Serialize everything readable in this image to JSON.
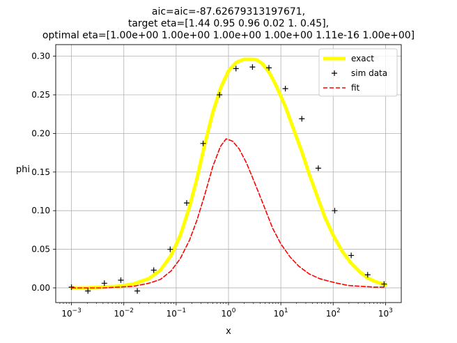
{
  "chart_data": {
    "type": "line",
    "title_lines": [
      "aic=aic=-87.62679313197671,",
      "target eta=[1.44 0.95 0.96 0.02 1.   0.45],",
      "optimal eta=[1.00e+00 1.00e+00 1.00e+00 1.00e+00 1.11e-16 1.00e+00]"
    ],
    "xlabel": "x",
    "ylabel": "phi",
    "x_scale": "log",
    "xlim": [
      0.0005,
      2000
    ],
    "ylim": [
      -0.019,
      0.315
    ],
    "grid": true,
    "legend_position": "top-right",
    "x_ticks": [
      {
        "value": 0.001,
        "base": "10",
        "exp": "−3"
      },
      {
        "value": 0.01,
        "base": "10",
        "exp": "−2"
      },
      {
        "value": 0.1,
        "base": "10",
        "exp": "−1"
      },
      {
        "value": 1,
        "base": "10",
        "exp": "0"
      },
      {
        "value": 10,
        "base": "10",
        "exp": "1"
      },
      {
        "value": 100,
        "base": "10",
        "exp": "2"
      },
      {
        "value": 1000,
        "base": "10",
        "exp": "3"
      }
    ],
    "y_ticks": [
      {
        "value": 0.0,
        "label": "0.00"
      },
      {
        "value": 0.05,
        "label": "0.05"
      },
      {
        "value": 0.1,
        "label": "0.10"
      },
      {
        "value": 0.15,
        "label": "0.15"
      },
      {
        "value": 0.2,
        "label": "0.20"
      },
      {
        "value": 0.25,
        "label": "0.25"
      },
      {
        "value": 0.3,
        "label": "0.30"
      }
    ],
    "series": [
      {
        "name": "exact",
        "style": "line",
        "color": "#ffff00",
        "x": [
          0.001,
          0.002,
          0.004,
          0.008,
          0.015,
          0.03,
          0.05,
          0.08,
          0.12,
          0.18,
          0.25,
          0.35,
          0.5,
          0.7,
          1.0,
          1.4,
          2.0,
          3.0,
          3.5,
          4.5,
          6.0,
          8.0,
          12,
          17,
          25,
          35,
          50,
          70,
          100,
          150,
          220,
          320,
          450,
          650,
          1000
        ],
        "y": [
          0.0,
          0.0,
          0.001,
          0.002,
          0.005,
          0.012,
          0.023,
          0.042,
          0.068,
          0.105,
          0.142,
          0.185,
          0.227,
          0.258,
          0.281,
          0.292,
          0.296,
          0.296,
          0.295,
          0.29,
          0.279,
          0.263,
          0.236,
          0.208,
          0.177,
          0.147,
          0.118,
          0.091,
          0.068,
          0.047,
          0.032,
          0.021,
          0.013,
          0.008,
          0.004
        ]
      },
      {
        "name": "sim data",
        "style": "marker",
        "color": "#000000",
        "x": [
          0.001,
          0.00206,
          0.00425,
          0.00877,
          0.0181,
          0.0373,
          0.0769,
          0.159,
          0.327,
          0.675,
          1.39,
          2.87,
          5.92,
          12.2,
          25.2,
          52.0,
          107,
          221,
          456,
          940
        ],
        "y": [
          0.001,
          -0.004,
          0.006,
          0.01,
          -0.004,
          0.023,
          0.05,
          0.11,
          0.187,
          0.25,
          0.284,
          0.286,
          0.285,
          0.258,
          0.219,
          0.155,
          0.1,
          0.042,
          0.017,
          0.005
        ]
      },
      {
        "name": "fit",
        "style": "dashed",
        "color": "#ff0000",
        "x": [
          0.001,
          0.002,
          0.004,
          0.008,
          0.015,
          0.03,
          0.05,
          0.08,
          0.12,
          0.18,
          0.25,
          0.35,
          0.5,
          0.7,
          0.9,
          1.2,
          1.6,
          2.2,
          3.0,
          4.5,
          7.0,
          10,
          15,
          22,
          35,
          55,
          80,
          120,
          200,
          350,
          600,
          1000
        ],
        "y": [
          0.0,
          0.0,
          0.0,
          0.001,
          0.002,
          0.006,
          0.011,
          0.022,
          0.038,
          0.062,
          0.088,
          0.12,
          0.157,
          0.183,
          0.193,
          0.19,
          0.18,
          0.162,
          0.14,
          0.11,
          0.077,
          0.057,
          0.04,
          0.028,
          0.018,
          0.012,
          0.009,
          0.006,
          0.003,
          0.002,
          0.001,
          0.001
        ]
      }
    ]
  }
}
